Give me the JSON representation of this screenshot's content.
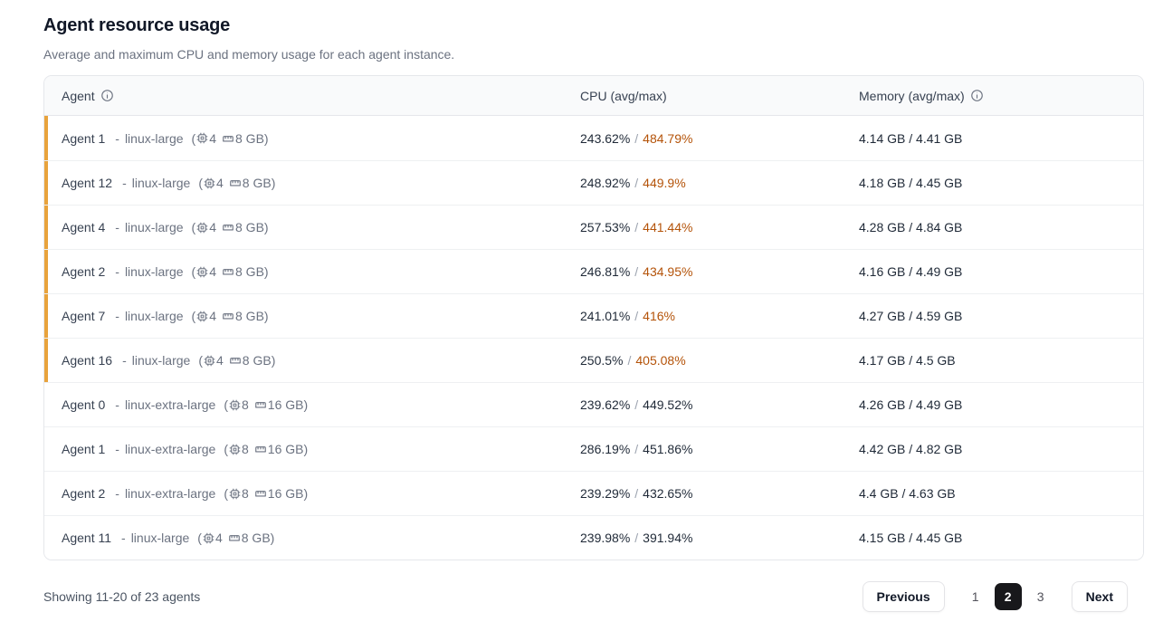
{
  "header": {
    "title": "Agent resource usage",
    "subtitle": "Average and maximum CPU and memory usage for each agent instance."
  },
  "ui": {
    "dash": "-",
    "open_paren": "(",
    "close_paren": ")",
    "slash": "/"
  },
  "table": {
    "columns": [
      {
        "label": "Agent",
        "has_info": true
      },
      {
        "label": "CPU (avg/max)",
        "has_info": false
      },
      {
        "label": "Memory (avg/max)",
        "has_info": true
      }
    ],
    "rows": [
      {
        "name": "Agent 1",
        "instance_type": "linux-large",
        "cpus": "4",
        "memory": "8 GB",
        "cpu_avg": "243.62%",
        "cpu_max": "484.79%",
        "memory_usage": "4.14 GB / 4.41 GB",
        "cpu_max_warning": true,
        "highlighted": true
      },
      {
        "name": "Agent 12",
        "instance_type": "linux-large",
        "cpus": "4",
        "memory": "8 GB",
        "cpu_avg": "248.92%",
        "cpu_max": "449.9%",
        "memory_usage": "4.18 GB / 4.45 GB",
        "cpu_max_warning": true,
        "highlighted": true
      },
      {
        "name": "Agent 4",
        "instance_type": "linux-large",
        "cpus": "4",
        "memory": "8 GB",
        "cpu_avg": "257.53%",
        "cpu_max": "441.44%",
        "memory_usage": "4.28 GB / 4.84 GB",
        "cpu_max_warning": true,
        "highlighted": true
      },
      {
        "name": "Agent 2",
        "instance_type": "linux-large",
        "cpus": "4",
        "memory": "8 GB",
        "cpu_avg": "246.81%",
        "cpu_max": "434.95%",
        "memory_usage": "4.16 GB / 4.49 GB",
        "cpu_max_warning": true,
        "highlighted": true
      },
      {
        "name": "Agent 7",
        "instance_type": "linux-large",
        "cpus": "4",
        "memory": "8 GB",
        "cpu_avg": "241.01%",
        "cpu_max": "416%",
        "memory_usage": "4.27 GB / 4.59 GB",
        "cpu_max_warning": true,
        "highlighted": true
      },
      {
        "name": "Agent 16",
        "instance_type": "linux-large",
        "cpus": "4",
        "memory": "8 GB",
        "cpu_avg": "250.5%",
        "cpu_max": "405.08%",
        "memory_usage": "4.17 GB / 4.5 GB",
        "cpu_max_warning": true,
        "highlighted": true
      },
      {
        "name": "Agent 0",
        "instance_type": "linux-extra-large",
        "cpus": "8",
        "memory": "16 GB",
        "cpu_avg": "239.62%",
        "cpu_max": "449.52%",
        "memory_usage": "4.26 GB / 4.49 GB",
        "cpu_max_warning": false,
        "highlighted": false
      },
      {
        "name": "Agent 1",
        "instance_type": "linux-extra-large",
        "cpus": "8",
        "memory": "16 GB",
        "cpu_avg": "286.19%",
        "cpu_max": "451.86%",
        "memory_usage": "4.42 GB / 4.82 GB",
        "cpu_max_warning": false,
        "highlighted": false
      },
      {
        "name": "Agent 2",
        "instance_type": "linux-extra-large",
        "cpus": "8",
        "memory": "16 GB",
        "cpu_avg": "239.29%",
        "cpu_max": "432.65%",
        "memory_usage": "4.4 GB / 4.63 GB",
        "cpu_max_warning": false,
        "highlighted": false
      },
      {
        "name": "Agent 11",
        "instance_type": "linux-large",
        "cpus": "4",
        "memory": "8 GB",
        "cpu_avg": "239.98%",
        "cpu_max": "391.94%",
        "memory_usage": "4.15 GB / 4.45 GB",
        "cpu_max_warning": false,
        "highlighted": false
      }
    ]
  },
  "footer": {
    "summary": "Showing 11-20 of 23 agents",
    "pagination": {
      "previous_label": "Previous",
      "next_label": "Next",
      "pages": [
        "1",
        "2",
        "3"
      ],
      "active_page": "2"
    }
  },
  "colors": {
    "accent_stripe": "#E8A33D",
    "cpu_max_warning": "#B45309",
    "active_page_bg": "#18181B"
  }
}
